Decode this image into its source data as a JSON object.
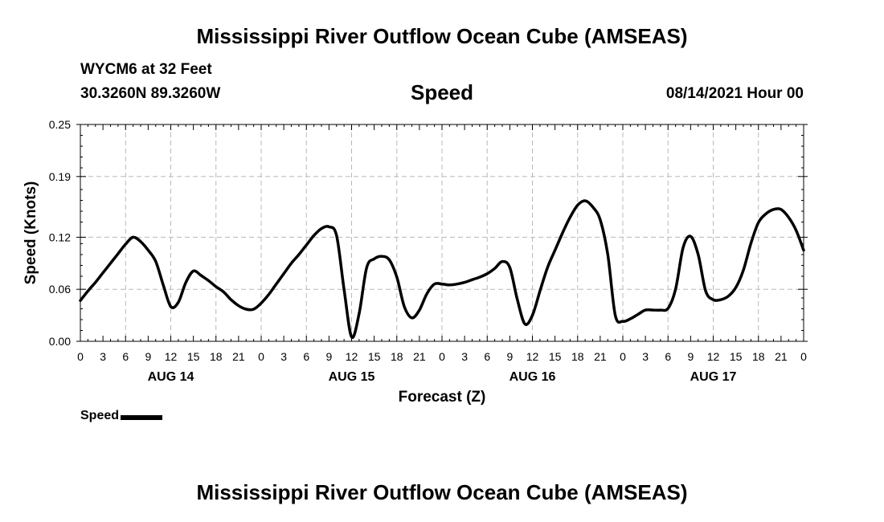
{
  "header": {
    "title": "Mississippi River Outflow Ocean Cube (AMSEAS)",
    "station": "WYCM6 at 32 Feet",
    "coords": "30.3260N  89.3260W",
    "variable": "Speed",
    "datetime": "08/14/2021 Hour 00"
  },
  "footer": {
    "title": "Mississippi River Outflow Ocean Cube (AMSEAS)"
  },
  "legend": {
    "label": "Speed"
  },
  "chart_data": {
    "type": "line",
    "title": "Speed",
    "xlabel": "Forecast (Z)",
    "ylabel": "Speed (Knots)",
    "xlim": [
      0,
      96
    ],
    "ylim": [
      0,
      0.25
    ],
    "yticks": [
      0.0,
      0.06,
      0.12,
      0.19,
      0.25
    ],
    "ytick_labels": [
      "0.00",
      "0.06",
      "0.12",
      "0.19",
      "0.25"
    ],
    "xtick_hours": [
      0,
      3,
      6,
      9,
      12,
      15,
      18,
      21,
      24,
      27,
      30,
      33,
      36,
      39,
      42,
      45,
      48,
      51,
      54,
      57,
      60,
      63,
      66,
      69,
      72,
      75,
      78,
      81,
      84,
      87,
      90,
      93,
      96
    ],
    "xtick_labels": [
      "0",
      "3",
      "6",
      "9",
      "12",
      "15",
      "18",
      "21",
      "0",
      "3",
      "6",
      "9",
      "12",
      "15",
      "18",
      "21",
      "0",
      "3",
      "6",
      "9",
      "12",
      "15",
      "18",
      "21",
      "0",
      "3",
      "6",
      "9",
      "12",
      "15",
      "18",
      "21",
      "0"
    ],
    "day_labels": [
      {
        "label": "AUG 14",
        "hour": 12
      },
      {
        "label": "AUG 15",
        "hour": 36
      },
      {
        "label": "AUG 16",
        "hour": 60
      },
      {
        "label": "AUG 17",
        "hour": 84
      }
    ],
    "grid": true,
    "series": [
      {
        "name": "Speed",
        "color": "#000000",
        "x": [
          0,
          1,
          2,
          3,
          4,
          5,
          6,
          7,
          8,
          9,
          10,
          11,
          12,
          13,
          14,
          15,
          16,
          17,
          18,
          19,
          20,
          21,
          22,
          23,
          24,
          25,
          26,
          27,
          28,
          29,
          30,
          31,
          32,
          33,
          34,
          35,
          36,
          37,
          38,
          39,
          40,
          41,
          42,
          43,
          44,
          45,
          46,
          47,
          48,
          49,
          50,
          51,
          52,
          53,
          54,
          55,
          56,
          57,
          58,
          59,
          60,
          61,
          62,
          63,
          64,
          65,
          66,
          67,
          68,
          69,
          70,
          71,
          72,
          73,
          74,
          75,
          76,
          77,
          78,
          79,
          80,
          81,
          82,
          83,
          84,
          85,
          86,
          87,
          88,
          89,
          90,
          91,
          92,
          93,
          94,
          95,
          96
        ],
        "values": [
          0.047,
          0.058,
          0.068,
          0.079,
          0.09,
          0.101,
          0.112,
          0.12,
          0.115,
          0.105,
          0.092,
          0.065,
          0.04,
          0.045,
          0.068,
          0.081,
          0.076,
          0.07,
          0.063,
          0.057,
          0.048,
          0.041,
          0.037,
          0.037,
          0.044,
          0.054,
          0.066,
          0.078,
          0.09,
          0.1,
          0.111,
          0.122,
          0.13,
          0.132,
          0.122,
          0.06,
          0.005,
          0.032,
          0.085,
          0.095,
          0.098,
          0.094,
          0.074,
          0.04,
          0.027,
          0.036,
          0.055,
          0.066,
          0.066,
          0.065,
          0.066,
          0.068,
          0.071,
          0.074,
          0.078,
          0.084,
          0.092,
          0.085,
          0.048,
          0.02,
          0.03,
          0.058,
          0.085,
          0.105,
          0.125,
          0.143,
          0.157,
          0.162,
          0.155,
          0.14,
          0.1,
          0.03,
          0.023,
          0.026,
          0.031,
          0.036,
          0.036,
          0.036,
          0.038,
          0.06,
          0.108,
          0.121,
          0.1,
          0.058,
          0.048,
          0.048,
          0.052,
          0.062,
          0.082,
          0.113,
          0.137,
          0.147,
          0.152,
          0.152,
          0.143,
          0.128,
          0.105
        ]
      }
    ]
  }
}
